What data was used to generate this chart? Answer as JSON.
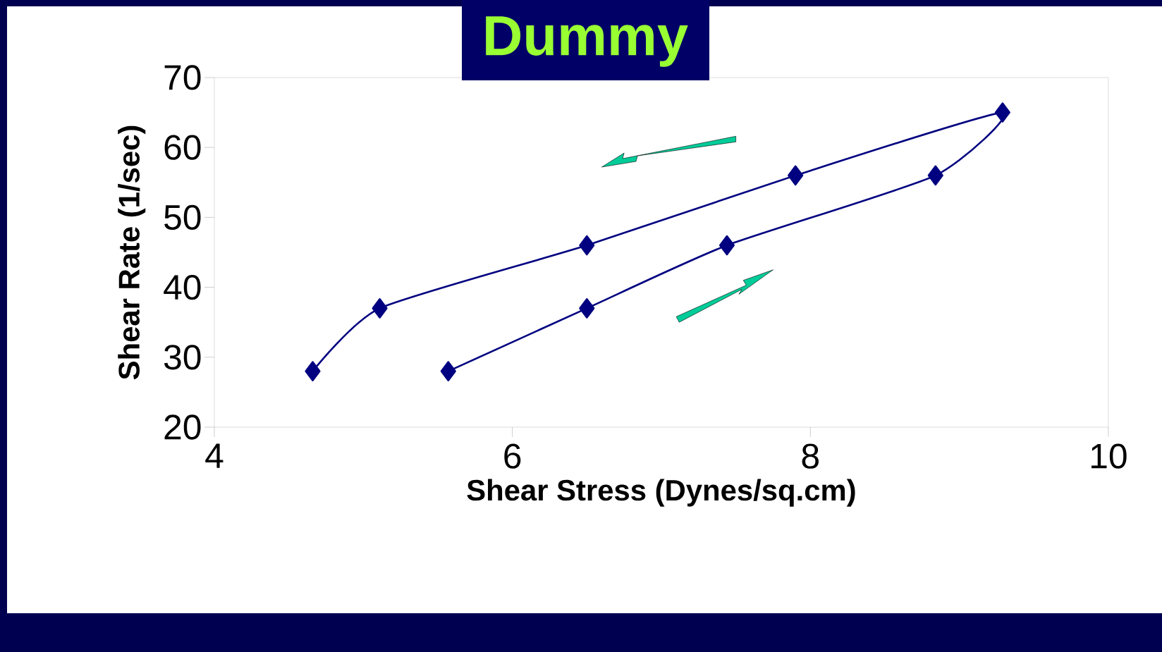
{
  "chart_data": {
    "type": "line",
    "title": "Dummy",
    "xlabel": "Shear Stress (Dynes/sq.cm)",
    "ylabel": "Shear Rate (1/sec)",
    "series": [
      {
        "color": "#000080",
        "x": [
          5.57,
          6.5,
          7.44,
          8.84,
          9.29,
          7.9,
          6.5,
          5.11,
          4.66
        ],
        "values": [
          28,
          37,
          46,
          56,
          65,
          56,
          46,
          37,
          28
        ]
      }
    ],
    "xlim": [
      4,
      10
    ],
    "ylim": [
      20,
      70
    ],
    "xticks": [
      4,
      6,
      8,
      10
    ],
    "yticks": [
      20,
      30,
      40,
      50,
      60,
      70
    ],
    "marker": "diamond",
    "line_style": "solid"
  }
}
